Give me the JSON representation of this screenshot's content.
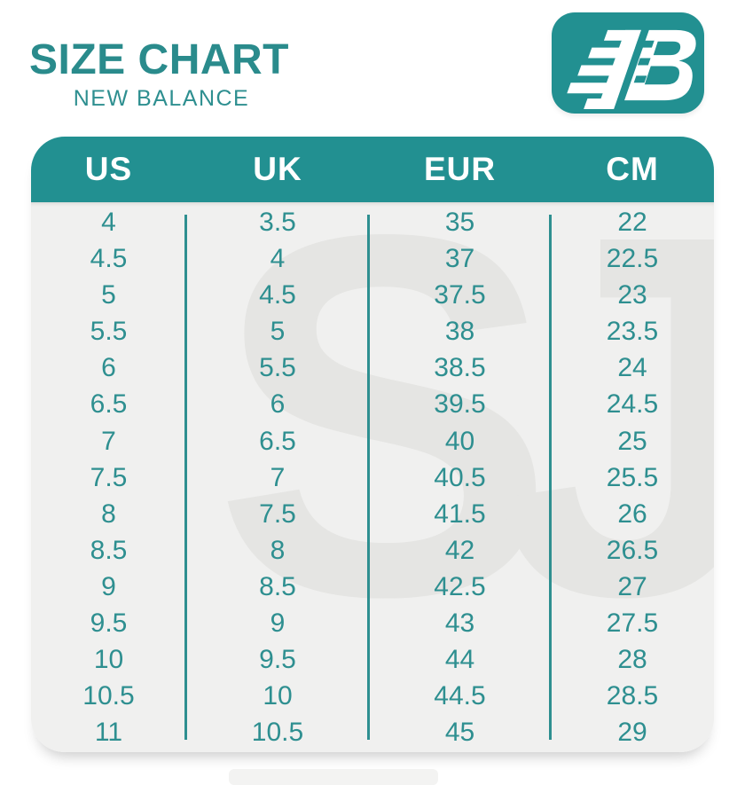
{
  "title": "SIZE CHART",
  "subtitle": "NEW BALANCE",
  "logo": {
    "icon": "new-balance-nb-logo"
  },
  "watermark": {
    "text": "SJ"
  },
  "colors": {
    "accent": "#229091",
    "title_teal": "#2a8b8c",
    "text_teal": "#2e8f90",
    "table_bg": "#f0f0ef",
    "watermark": "#e5e5e3"
  },
  "chart_data": {
    "type": "table",
    "title": "SIZE CHART",
    "subtitle": "NEW BALANCE",
    "columns": [
      "US",
      "UK",
      "EUR",
      "CM"
    ],
    "rows": [
      [
        "4",
        "3.5",
        "35",
        "22"
      ],
      [
        "4.5",
        "4",
        "37",
        "22.5"
      ],
      [
        "5",
        "4.5",
        "37.5",
        "23"
      ],
      [
        "5.5",
        "5",
        "38",
        "23.5"
      ],
      [
        "6",
        "5.5",
        "38.5",
        "24"
      ],
      [
        "6.5",
        "6",
        "39.5",
        "24.5"
      ],
      [
        "7",
        "6.5",
        "40",
        "25"
      ],
      [
        "7.5",
        "7",
        "40.5",
        "25.5"
      ],
      [
        "8",
        "7.5",
        "41.5",
        "26"
      ],
      [
        "8.5",
        "8",
        "42",
        "26.5"
      ],
      [
        "9",
        "8.5",
        "42.5",
        "27"
      ],
      [
        "9.5",
        "9",
        "43",
        "27.5"
      ],
      [
        "10",
        "9.5",
        "44",
        "28"
      ],
      [
        "10.5",
        "10",
        "44.5",
        "28.5"
      ],
      [
        "11",
        "10.5",
        "45",
        "29"
      ]
    ]
  }
}
